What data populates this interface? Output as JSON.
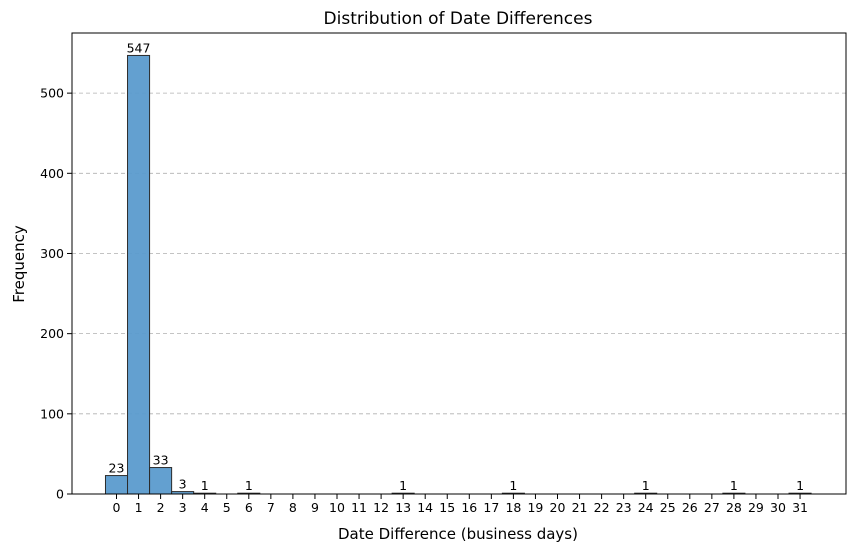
{
  "chart_data": {
    "type": "bar",
    "title": "Distribution of Date Differences",
    "xlabel": "Date Difference (business days)",
    "ylabel": "Frequency",
    "categories": [
      0,
      1,
      2,
      3,
      4,
      5,
      6,
      7,
      8,
      9,
      10,
      11,
      12,
      13,
      14,
      15,
      16,
      17,
      18,
      19,
      20,
      21,
      22,
      23,
      24,
      25,
      26,
      27,
      28,
      29,
      30,
      31
    ],
    "values": [
      23,
      547,
      33,
      3,
      1,
      0,
      1,
      0,
      0,
      0,
      0,
      0,
      0,
      1,
      0,
      0,
      0,
      0,
      1,
      0,
      0,
      0,
      0,
      0,
      1,
      0,
      0,
      0,
      1,
      0,
      0,
      1
    ],
    "data_labels": [
      "23",
      "547",
      "33",
      "3",
      "1",
      "",
      "1",
      "",
      "",
      "",
      "",
      "",
      "",
      "1",
      "",
      "",
      "",
      "",
      "1",
      "",
      "",
      "",
      "",
      "",
      "1",
      "",
      "",
      "",
      "1",
      "",
      "",
      "1"
    ],
    "ylim": [
      0,
      575
    ],
    "yticks": [
      0,
      100,
      200,
      300,
      400,
      500
    ],
    "grid": "y-dashed",
    "bar_color": "#5b9bcd",
    "bar_edge_color": "#2b2b2b"
  }
}
